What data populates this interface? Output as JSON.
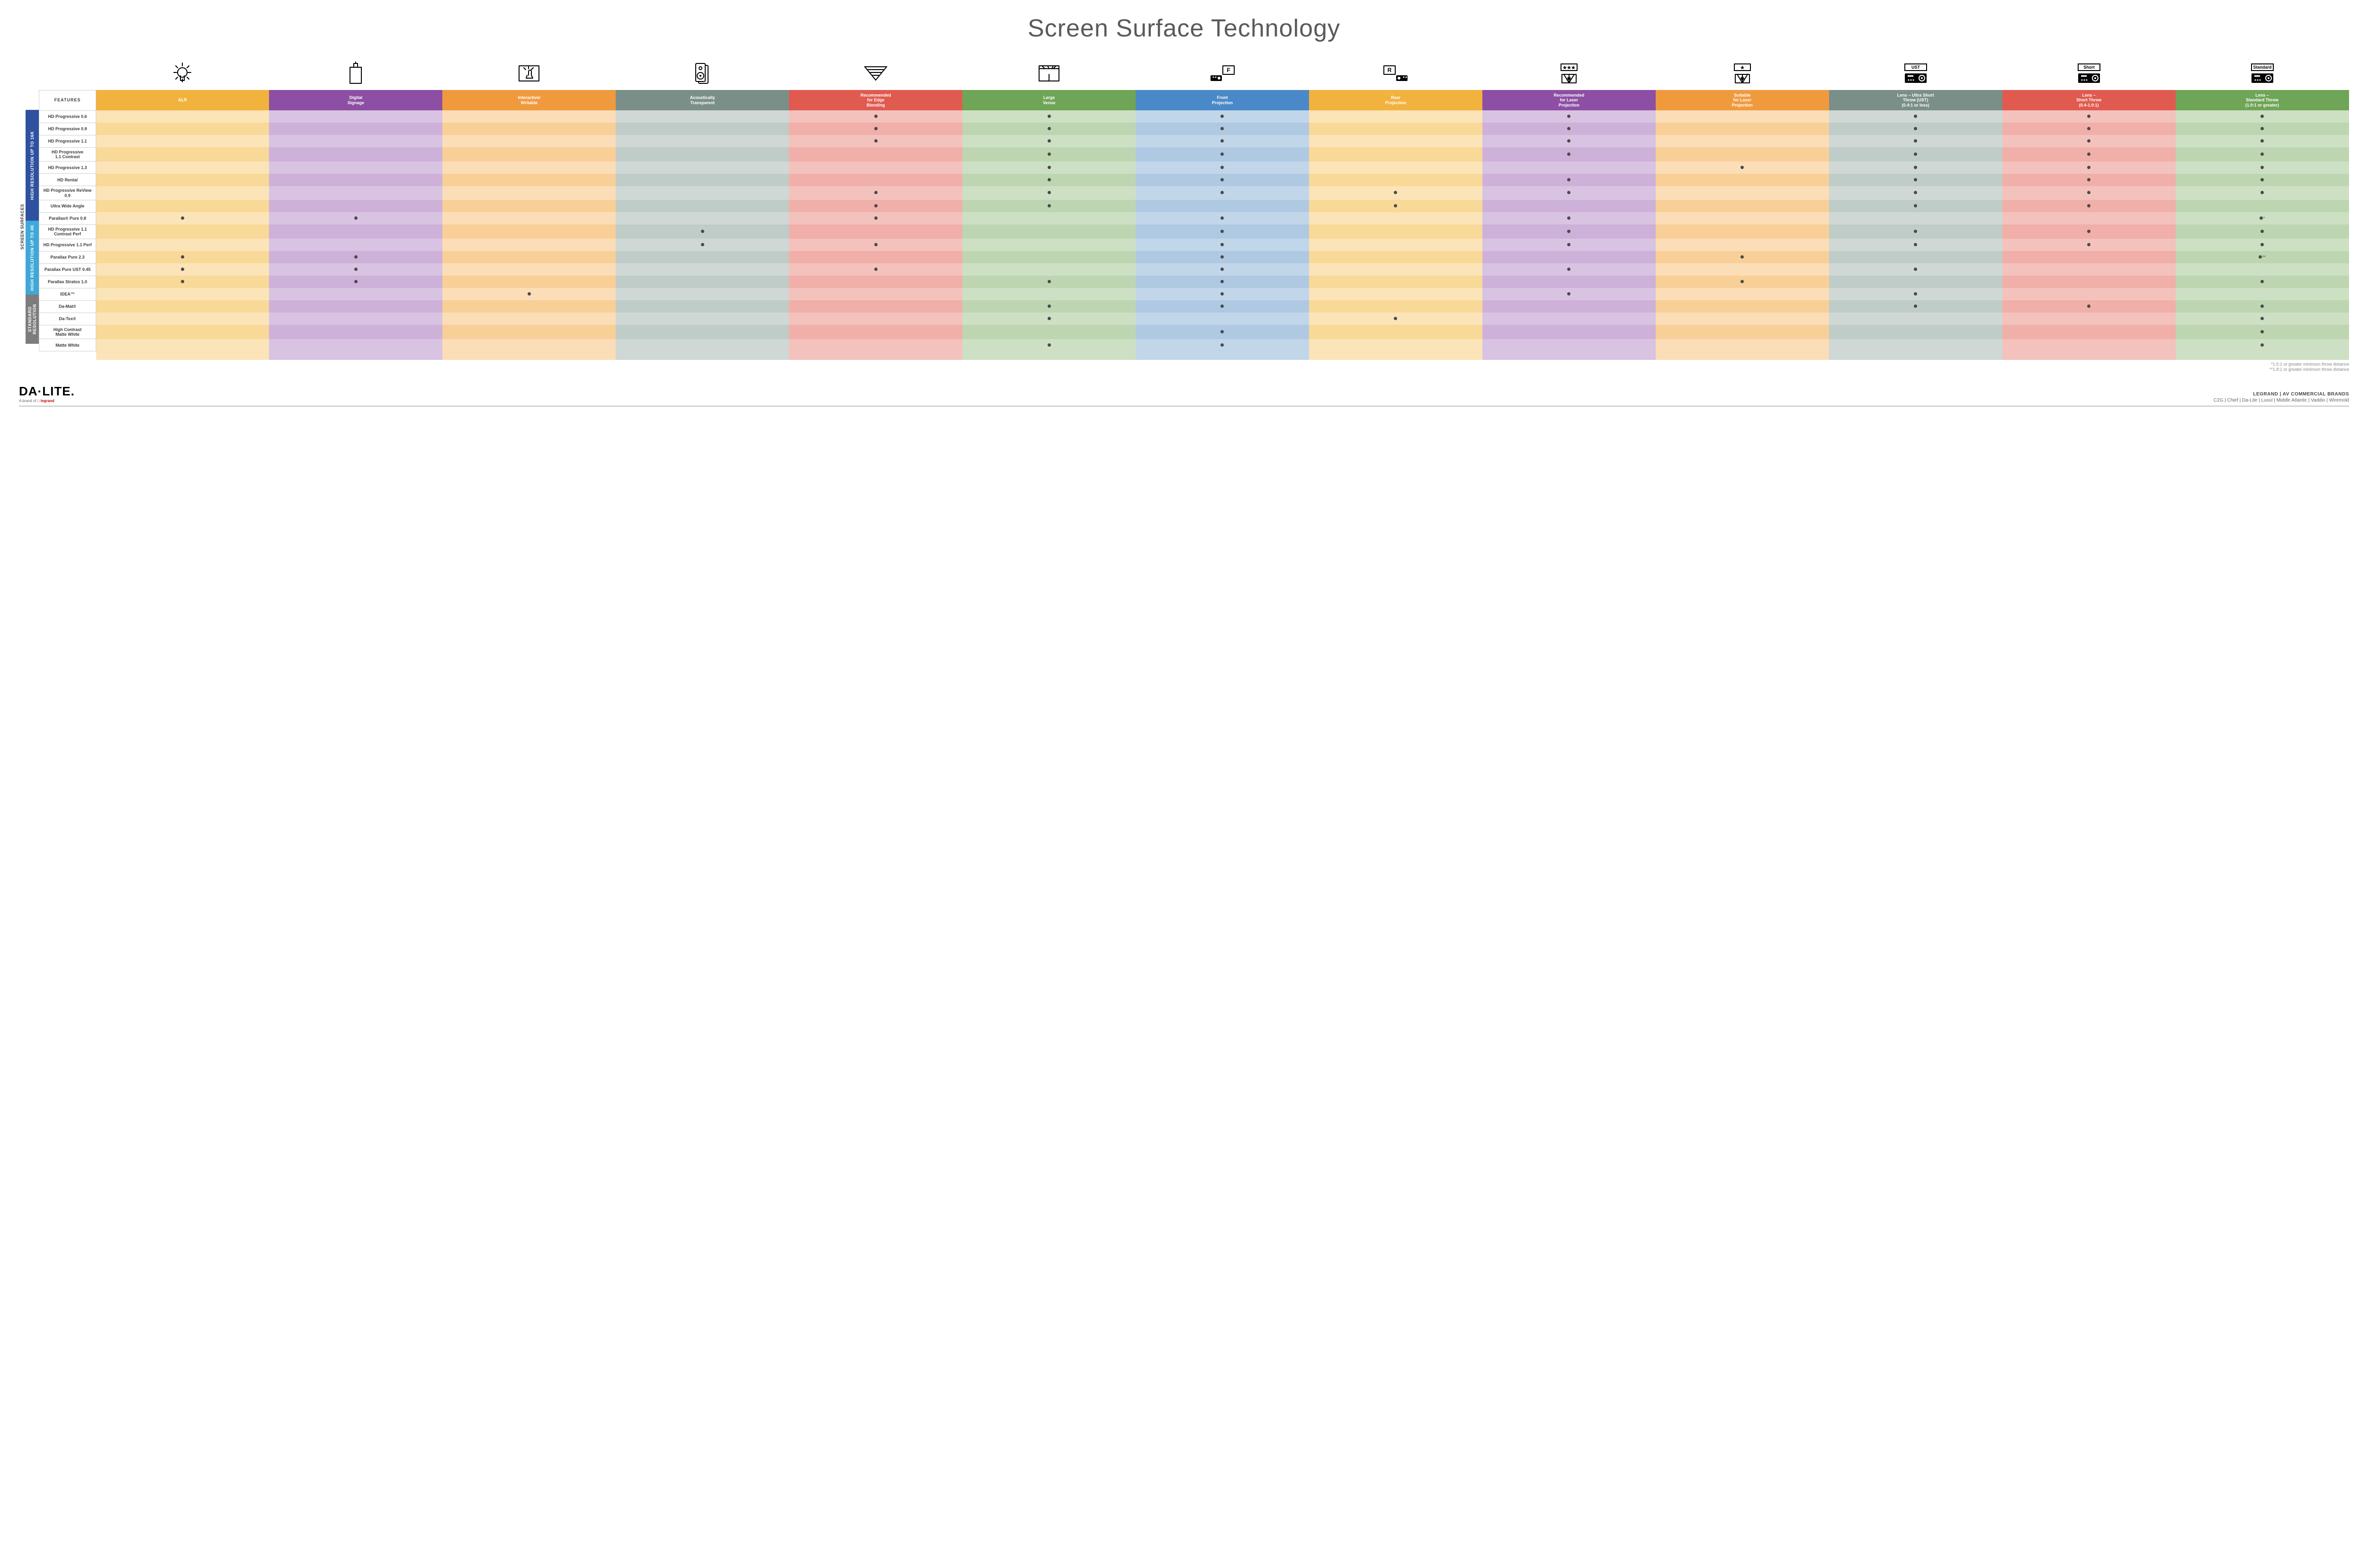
{
  "title": "Screen Surface Technology",
  "features_header": "FEATURES",
  "side_outer_label": "SCREEN SURFACES",
  "columns": [
    {
      "key": "alr",
      "label": "ALR",
      "color": "#f2b23e",
      "tint": "#fbe4b7",
      "tintAlt": "#f9d998"
    },
    {
      "key": "signage",
      "label": "Digital\nSignage",
      "color": "#8c4fa3",
      "tint": "#d9c3e2",
      "tintAlt": "#cdb1d9"
    },
    {
      "key": "interactive",
      "label": "Interactive/\nWritable",
      "color": "#f09a3e",
      "tint": "#fbddb7",
      "tintAlt": "#f9cf98"
    },
    {
      "key": "acoustic",
      "label": "Acoustically\nTransparent",
      "color": "#7a8f88",
      "tint": "#cfd8d4",
      "tintAlt": "#c0ccc7"
    },
    {
      "key": "edge",
      "label": "Recommended\nfor Edge\nBlending",
      "color": "#e05a4f",
      "tint": "#f4c2bd",
      "tintAlt": "#f0afa8"
    },
    {
      "key": "large",
      "label": "Large\nVenue",
      "color": "#6fa556",
      "tint": "#cde0c4",
      "tintAlt": "#bdd6b1"
    },
    {
      "key": "front",
      "label": "Front\nProjection",
      "color": "#4a89c7",
      "tint": "#c2d6ea",
      "tintAlt": "#afc9e3"
    },
    {
      "key": "rear",
      "label": "Rear\nProjection",
      "color": "#f2b23e",
      "tint": "#fbe4b7",
      "tintAlt": "#f9d998"
    },
    {
      "key": "reclas",
      "label": "Recommended\nfor Laser\nProjection",
      "color": "#8c4fa3",
      "tint": "#d9c3e2",
      "tintAlt": "#cdb1d9"
    },
    {
      "key": "suitlas",
      "label": "Suitable\nfor Laser\nProjection",
      "color": "#f09a3e",
      "tint": "#fbddb7",
      "tintAlt": "#f9cf98"
    },
    {
      "key": "ust",
      "label": "Lens – Ultra Short\nThrow (UST)\n(0.4:1 or less)",
      "color": "#7a8f88",
      "tint": "#cfd8d4",
      "tintAlt": "#c0ccc7"
    },
    {
      "key": "short",
      "label": "Lens –\nShort Throw\n(0.4-1.0:1)",
      "color": "#e05a4f",
      "tint": "#f4c2bd",
      "tintAlt": "#f0afa8"
    },
    {
      "key": "std",
      "label": "Lens –\nStandard Throw\n(1.0:1 or greater)",
      "color": "#6fa556",
      "tint": "#cde0c4",
      "tintAlt": "#bdd6b1"
    }
  ],
  "groups": [
    {
      "label": "HIGH RESOLUTION UP TO 16K",
      "color": "#2f52a0",
      "rows": 9
    },
    {
      "label": "HIGH RESOLUTION UP TO 4K",
      "color": "#3fa8d8",
      "rows": 6
    },
    {
      "label": "STANDARD\nRESOLUTION",
      "color": "#7d7d7d",
      "rows": 4
    }
  ],
  "rows": [
    {
      "label": "HD Progressive 0.6",
      "dots": {
        "edge": "•",
        "large": "•",
        "front": "•",
        "reclas": "•",
        "ust": "•",
        "short": "•",
        "std": "•"
      }
    },
    {
      "label": "HD Progressive 0.9",
      "dots": {
        "edge": "•",
        "large": "•",
        "front": "•",
        "reclas": "•",
        "ust": "•",
        "short": "•",
        "std": "•"
      }
    },
    {
      "label": "HD Progressive 1.1",
      "dots": {
        "edge": "•",
        "large": "•",
        "front": "•",
        "reclas": "•",
        "ust": "•",
        "short": "•",
        "std": "•"
      }
    },
    {
      "label": "HD Progressive\n1.1 Contrast",
      "dots": {
        "large": "•",
        "front": "•",
        "reclas": "•",
        "ust": "•",
        "short": "•",
        "std": "•"
      }
    },
    {
      "label": "HD Progressive 1.3",
      "dots": {
        "large": "•",
        "front": "•",
        "suitlas": "•",
        "ust": "•",
        "short": "•",
        "std": "•"
      }
    },
    {
      "label": "HD Rental",
      "dots": {
        "large": "•",
        "front": "•",
        "reclas": "•",
        "ust": "•",
        "short": "•",
        "std": "•"
      }
    },
    {
      "label": "HD Progressive ReView 0.9",
      "dots": {
        "edge": "•",
        "large": "•",
        "front": "•",
        "rear": "•",
        "reclas": "•",
        "ust": "•",
        "short": "•",
        "std": "•"
      }
    },
    {
      "label": "Ultra Wide Angle",
      "dots": {
        "edge": "•",
        "large": "•",
        "rear": "•",
        "ust": "•",
        "short": "•"
      }
    },
    {
      "label": "Parallax® Pure 0.8",
      "dots": {
        "alr": "•",
        "signage": "•",
        "edge": "•",
        "front": "•",
        "reclas": "•",
        "std": "•*"
      }
    },
    {
      "label": "HD Progressive 1.1\nContrast Perf",
      "dots": {
        "acoustic": "•",
        "front": "•",
        "reclas": "•",
        "ust": "•",
        "short": "•",
        "std": "•"
      }
    },
    {
      "label": "HD Progressive 1.1 Perf",
      "dots": {
        "acoustic": "•",
        "edge": "•",
        "front": "•",
        "reclas": "•",
        "ust": "•",
        "short": "•",
        "std": "•"
      }
    },
    {
      "label": "Parallax Pure 2.3",
      "dots": {
        "alr": "•",
        "signage": "•",
        "front": "•",
        "suitlas": "•",
        "std": "•**"
      }
    },
    {
      "label": "Parallax Pure UST 0.45",
      "dots": {
        "alr": "•",
        "signage": "•",
        "edge": "•",
        "front": "•",
        "reclas": "•",
        "ust": "•"
      }
    },
    {
      "label": "Parallax Stratos 1.0",
      "dots": {
        "alr": "•",
        "signage": "•",
        "large": "•",
        "front": "•",
        "suitlas": "•",
        "std": "•"
      }
    },
    {
      "label": "IDEA™",
      "dots": {
        "interactive": "•",
        "front": "•",
        "reclas": "•",
        "ust": "•"
      }
    },
    {
      "label": "Da-Mat®",
      "dots": {
        "large": "•",
        "front": "•",
        "ust": "•",
        "short": "•",
        "std": "•"
      }
    },
    {
      "label": "Da-Tex®",
      "dots": {
        "large": "•",
        "rear": "•",
        "std": "•"
      }
    },
    {
      "label": "High Contrast\nMatte White",
      "dots": {
        "front": "•",
        "std": "•"
      }
    },
    {
      "label": "Matte White",
      "dots": {
        "large": "•",
        "front": "•",
        "std": "•"
      }
    }
  ],
  "footnotes": [
    "*1.5:1 or greater minimum throw distance",
    "**1.8:1 or greater minimum throw distance"
  ],
  "footer": {
    "logo": "DA·LITE.",
    "logo_sub_prefix": "A brand of ",
    "logo_sub_brand": "legrand",
    "brands_title": "LEGRAND | AV COMMERCIAL BRANDS",
    "brands_list": "C2G  |  Chief  |  Da-Lite  |  Luxul  |  Middle Atlantic  |  Vaddio  |  Wiremold"
  },
  "icons": {
    "alr": "bulb",
    "signage": "monitor",
    "interactive": "touch",
    "acoustic": "speaker",
    "edge": "blend",
    "large": "venue",
    "front": "front",
    "rear": "rear",
    "reclas": "laser3",
    "suitlas": "laser1",
    "ust": "proj-ust",
    "short": "proj-short",
    "std": "proj-std"
  }
}
